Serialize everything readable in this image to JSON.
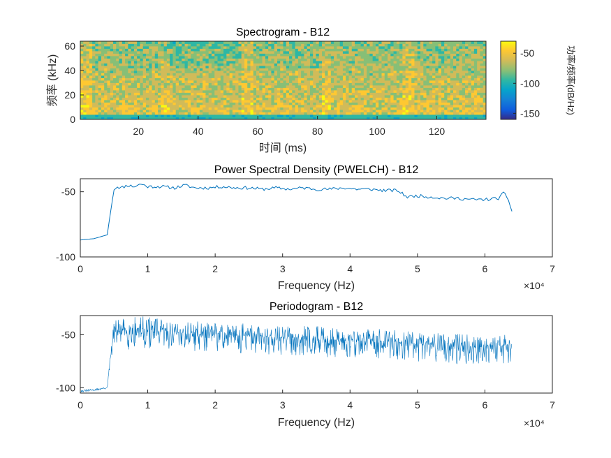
{
  "chart_data": [
    {
      "type": "heatmap",
      "title": "Spectrogram - B12",
      "xlabel": "时间 (ms)",
      "ylabel": "频率 (kHz)",
      "xlim": [
        0.5,
        136.5
      ],
      "ylim": [
        0,
        64
      ],
      "xticks": [
        20,
        40,
        60,
        80,
        100,
        120
      ],
      "yticks": [
        0,
        20,
        40,
        60
      ],
      "segment_boundaries_ms": [
        27,
        54.5,
        81,
        108.5
      ],
      "colorbar": {
        "label": "功率/频率(dB/Hz)",
        "ticks": [
          -50,
          -100,
          -150
        ],
        "range": [
          -160,
          -30
        ]
      }
    },
    {
      "type": "line",
      "title": "Power Spectral Density (PWELCH) - B12",
      "xlabel": "Frequency (Hz)",
      "xlim": [
        0,
        70000
      ],
      "ylim": [
        -100,
        -40
      ],
      "xticks": [
        0,
        1,
        2,
        3,
        4,
        5,
        6,
        7
      ],
      "yticks": [
        -50,
        -100
      ],
      "exponent": "×10⁴",
      "series": [
        {
          "x": [
            0,
            2000,
            4000,
            4500,
            5000,
            5500,
            6000,
            7000,
            8000,
            9000,
            10000,
            12000,
            14000,
            15500,
            17000,
            19000,
            21000,
            23000,
            25000,
            27000,
            29000,
            31000,
            33000,
            35000,
            37000,
            39000,
            41000,
            43000,
            45000,
            47000,
            48500,
            50000,
            52000,
            54000,
            56000,
            58000,
            60000,
            62000,
            62800,
            63500,
            64000
          ],
          "y": [
            -87,
            -86,
            -83,
            -65,
            -48,
            -46,
            -47,
            -45,
            -46,
            -44,
            -46,
            -46,
            -47,
            -45,
            -47,
            -47,
            -46,
            -47,
            -47,
            -48,
            -47,
            -48,
            -47,
            -48,
            -48,
            -47,
            -48,
            -48,
            -49,
            -49,
            -54,
            -53,
            -54,
            -55,
            -55,
            -56,
            -56,
            -55,
            -51,
            -56,
            -65
          ]
        }
      ]
    },
    {
      "type": "line",
      "title": "Periodogram - B12",
      "xlabel": "Frequency (Hz)",
      "xlim": [
        0,
        70000
      ],
      "ylim": [
        -105,
        -32
      ],
      "xticks": [
        0,
        1,
        2,
        3,
        4,
        5,
        6,
        7
      ],
      "yticks": [
        -50,
        -100
      ],
      "exponent": "×10⁴",
      "series": [
        {
          "x": [
            0,
            2000,
            4000,
            4500,
            5000,
            7000,
            9000,
            12000,
            15000,
            18000,
            21000,
            24000,
            27000,
            30000,
            33000,
            36000,
            39000,
            42000,
            45000,
            48000,
            51000,
            54000,
            57000,
            60000,
            62000,
            64000
          ],
          "y": [
            -103,
            -102,
            -100,
            -70,
            -47,
            -46,
            -45,
            -47,
            -48,
            -49,
            -50,
            -51,
            -52,
            -53,
            -53,
            -54,
            -55,
            -56,
            -56,
            -58,
            -59,
            -60,
            -61,
            -61,
            -60,
            -62
          ],
          "spread": [
            1,
            1,
            1,
            8,
            12,
            14,
            14,
            13,
            13,
            13,
            13,
            13,
            13,
            13,
            13,
            13,
            13,
            13,
            13,
            13,
            13,
            13,
            13,
            13,
            13,
            12
          ]
        }
      ]
    }
  ]
}
